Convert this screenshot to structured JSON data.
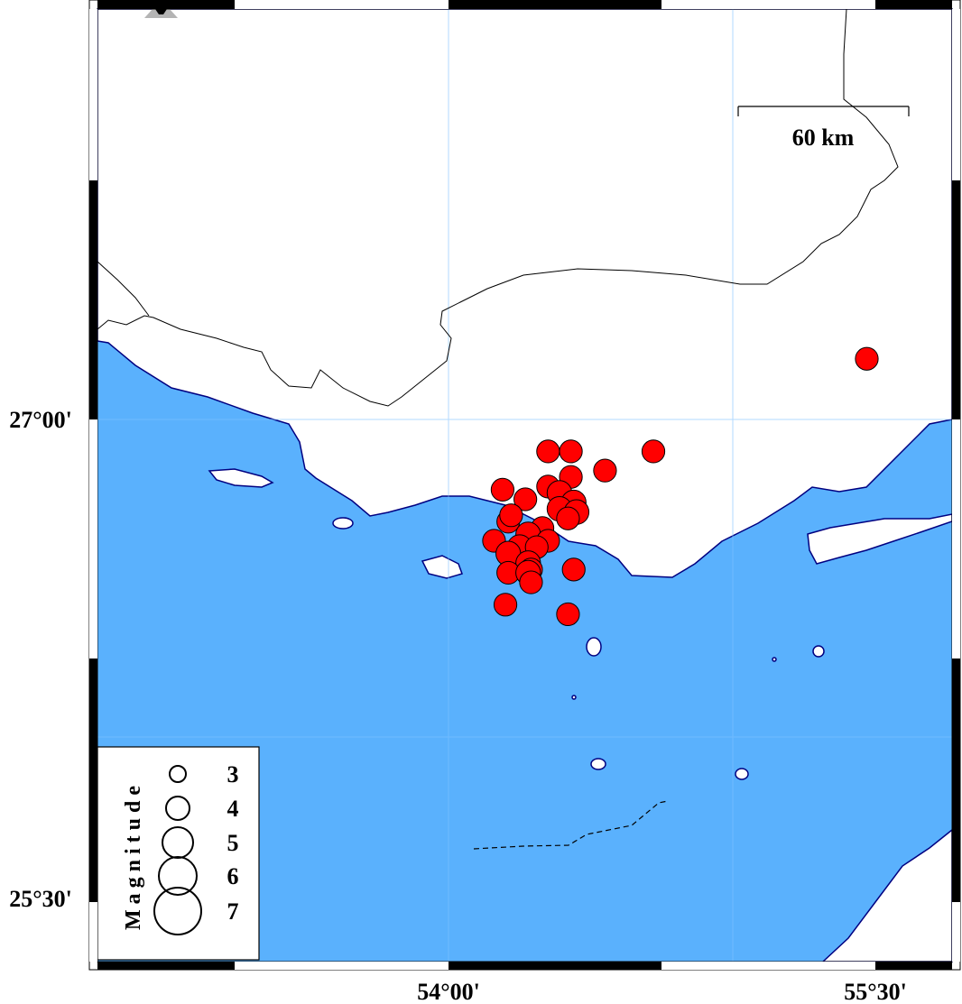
{
  "map": {
    "axis_labels": {
      "lon": [
        {
          "value": 54.0,
          "text": "54°00'"
        },
        {
          "value": 55.5,
          "text": "55°30'"
        }
      ],
      "lat": [
        {
          "value": 27.0,
          "text": "27°00'"
        },
        {
          "value": 25.5,
          "text": "25°30'"
        }
      ]
    },
    "scale_bar": {
      "label": "60 km"
    },
    "colors": {
      "water": "#5AB1FD",
      "land": "#FFFFFF",
      "events": "#FF0000",
      "coastline": "#000080",
      "station": "#B4B4B4"
    },
    "icons": {
      "station": "triangle-icon"
    },
    "legend": {
      "title": "Magnitude",
      "entries": [
        {
          "label": "3",
          "mag": 3
        },
        {
          "label": "4",
          "mag": 4
        },
        {
          "label": "5",
          "mag": 5
        },
        {
          "label": "6",
          "mag": 6
        },
        {
          "label": "7",
          "mag": 7
        }
      ]
    },
    "events": [
      {
        "lon": 55.47,
        "lat": 27.19,
        "mag": 4
      },
      {
        "lon": 54.35,
        "lat": 26.9,
        "mag": 4
      },
      {
        "lon": 54.43,
        "lat": 26.9,
        "mag": 4
      },
      {
        "lon": 54.72,
        "lat": 26.9,
        "mag": 4
      },
      {
        "lon": 54.55,
        "lat": 26.84,
        "mag": 4
      },
      {
        "lon": 54.43,
        "lat": 26.82,
        "mag": 4
      },
      {
        "lon": 54.19,
        "lat": 26.78,
        "mag": 4
      },
      {
        "lon": 54.27,
        "lat": 26.75,
        "mag": 4
      },
      {
        "lon": 54.35,
        "lat": 26.79,
        "mag": 4
      },
      {
        "lon": 54.39,
        "lat": 26.77,
        "mag": 4.3
      },
      {
        "lon": 54.44,
        "lat": 26.74,
        "mag": 4.3
      },
      {
        "lon": 54.39,
        "lat": 26.72,
        "mag": 4.3
      },
      {
        "lon": 54.45,
        "lat": 26.71,
        "mag": 4.3
      },
      {
        "lon": 54.42,
        "lat": 26.69,
        "mag": 4
      },
      {
        "lon": 54.21,
        "lat": 26.68,
        "mag": 4
      },
      {
        "lon": 54.22,
        "lat": 26.7,
        "mag": 4
      },
      {
        "lon": 54.33,
        "lat": 26.66,
        "mag": 4
      },
      {
        "lon": 54.28,
        "lat": 26.64,
        "mag": 4.3
      },
      {
        "lon": 54.16,
        "lat": 26.62,
        "mag": 4
      },
      {
        "lon": 54.25,
        "lat": 26.6,
        "mag": 4.3
      },
      {
        "lon": 54.35,
        "lat": 26.62,
        "mag": 4
      },
      {
        "lon": 54.31,
        "lat": 26.6,
        "mag": 4
      },
      {
        "lon": 54.21,
        "lat": 26.58,
        "mag": 4.3
      },
      {
        "lon": 54.28,
        "lat": 26.55,
        "mag": 4.3
      },
      {
        "lon": 54.21,
        "lat": 26.52,
        "mag": 4
      },
      {
        "lon": 54.29,
        "lat": 26.53,
        "mag": 4
      },
      {
        "lon": 54.28,
        "lat": 26.52,
        "mag": 4.3
      },
      {
        "lon": 54.44,
        "lat": 26.53,
        "mag": 4
      },
      {
        "lon": 54.29,
        "lat": 26.49,
        "mag": 4
      },
      {
        "lon": 54.2,
        "lat": 26.42,
        "mag": 4
      },
      {
        "lon": 54.42,
        "lat": 26.39,
        "mag": 4
      }
    ]
  }
}
